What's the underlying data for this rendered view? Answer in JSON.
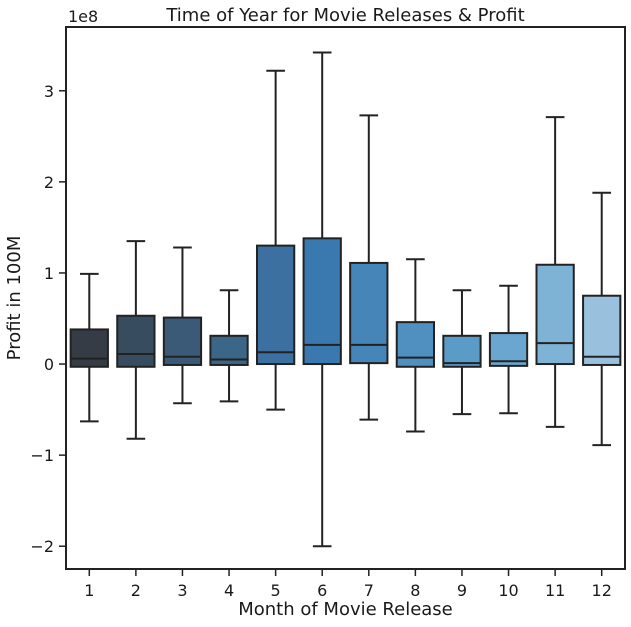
{
  "chart_data": {
    "type": "box",
    "title": "Time of Year for Movie Releases & Profit",
    "xlabel": "Month of Movie Release",
    "ylabel": "Profit in 100M",
    "y_offset_label": "1e8",
    "ylim": [
      -2.25,
      3.7
    ],
    "yticks": [
      -2,
      -1,
      0,
      1,
      2,
      3
    ],
    "ytick_labels": [
      "−2",
      "−1",
      "0",
      "1",
      "2",
      "3"
    ],
    "categories": [
      "1",
      "2",
      "3",
      "4",
      "5",
      "6",
      "7",
      "8",
      "9",
      "10",
      "11",
      "12"
    ],
    "boxes": [
      {
        "month": "1",
        "whisker_low": -0.63,
        "q1": -0.03,
        "median": 0.06,
        "q3": 0.38,
        "whisker_high": 0.99
      },
      {
        "month": "2",
        "whisker_low": -0.82,
        "q1": -0.03,
        "median": 0.11,
        "q3": 0.53,
        "whisker_high": 1.35
      },
      {
        "month": "3",
        "whisker_low": -0.43,
        "q1": -0.01,
        "median": 0.08,
        "q3": 0.51,
        "whisker_high": 1.28
      },
      {
        "month": "4",
        "whisker_low": -0.41,
        "q1": -0.01,
        "median": 0.05,
        "q3": 0.31,
        "whisker_high": 0.81
      },
      {
        "month": "5",
        "whisker_low": -0.5,
        "q1": 0.0,
        "median": 0.13,
        "q3": 1.3,
        "whisker_high": 3.22
      },
      {
        "month": "6",
        "whisker_low": -2.0,
        "q1": 0.0,
        "median": 0.21,
        "q3": 1.38,
        "whisker_high": 3.42
      },
      {
        "month": "7",
        "whisker_low": -0.61,
        "q1": 0.01,
        "median": 0.21,
        "q3": 1.11,
        "whisker_high": 2.73
      },
      {
        "month": "8",
        "whisker_low": -0.74,
        "q1": -0.03,
        "median": 0.07,
        "q3": 0.46,
        "whisker_high": 1.15
      },
      {
        "month": "9",
        "whisker_low": -0.55,
        "q1": -0.03,
        "median": 0.01,
        "q3": 0.31,
        "whisker_high": 0.81
      },
      {
        "month": "10",
        "whisker_low": -0.54,
        "q1": -0.02,
        "median": 0.03,
        "q3": 0.34,
        "whisker_high": 0.86
      },
      {
        "month": "11",
        "whisker_low": -0.69,
        "q1": 0.0,
        "median": 0.23,
        "q3": 1.09,
        "whisker_high": 2.71
      },
      {
        "month": "12",
        "whisker_low": -0.89,
        "q1": -0.01,
        "median": 0.08,
        "q3": 0.75,
        "whisker_high": 1.88
      }
    ],
    "colors": [
      "#353c45",
      "#384c5f",
      "#3a5a78",
      "#3b6688",
      "#3b70a0",
      "#3a79b0",
      "#4585b8",
      "#4f90c0",
      "#5b9bc8",
      "#6aa6cf",
      "#7fb3d6",
      "#99c1dd"
    ],
    "line_color": "#222222",
    "grid": false,
    "legend": "none"
  }
}
